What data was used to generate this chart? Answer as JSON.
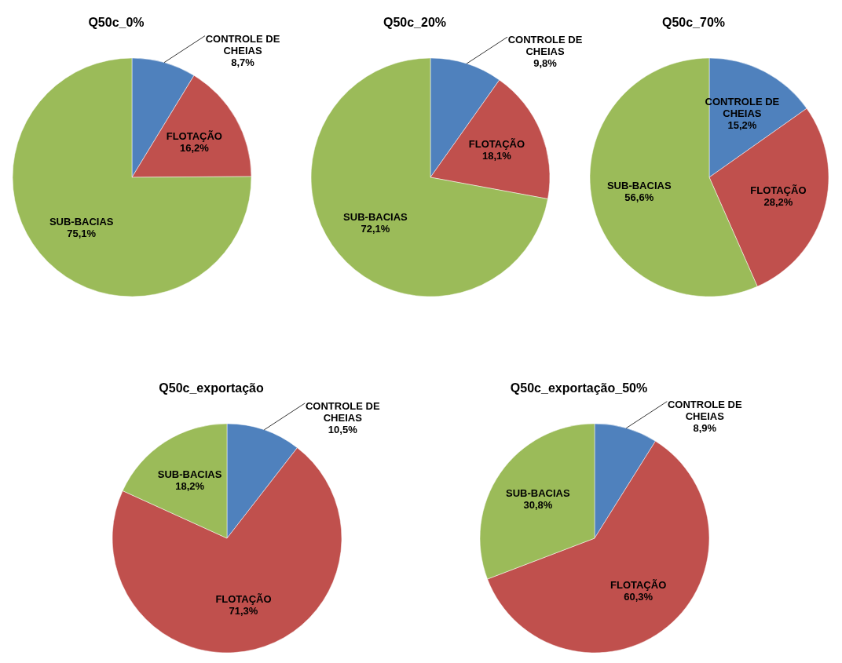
{
  "chart_data": [
    {
      "type": "pie",
      "title": "Q50c_0%",
      "categories": [
        "CONTROLE DE CHEIAS",
        "FLOTAÇÃO",
        "SUB-BACIAS"
      ],
      "values": [
        8.7,
        16.2,
        75.1
      ],
      "value_labels": [
        "8,7%",
        "16,2%",
        "75,1%"
      ],
      "colors": [
        "#4f81bd",
        "#c0504d",
        "#9bbb59"
      ]
    },
    {
      "type": "pie",
      "title": "Q50c_20%",
      "categories": [
        "CONTROLE DE CHEIAS",
        "FLOTAÇÃO",
        "SUB-BACIAS"
      ],
      "values": [
        9.8,
        18.1,
        72.1
      ],
      "value_labels": [
        "9,8%",
        "18,1%",
        "72,1%"
      ],
      "colors": [
        "#4f81bd",
        "#c0504d",
        "#9bbb59"
      ]
    },
    {
      "type": "pie",
      "title": "Q50c_70%",
      "categories": [
        "CONTROLE DE CHEIAS",
        "FLOTAÇÃO",
        "SUB-BACIAS"
      ],
      "values": [
        15.2,
        28.2,
        56.6
      ],
      "value_labels": [
        "15,2%",
        "28,2%",
        "56,6%"
      ],
      "colors": [
        "#4f81bd",
        "#c0504d",
        "#9bbb59"
      ]
    },
    {
      "type": "pie",
      "title": "Q50c_exportação",
      "categories": [
        "CONTROLE DE CHEIAS",
        "FLOTAÇÃO",
        "SUB-BACIAS"
      ],
      "values": [
        10.5,
        71.3,
        18.2
      ],
      "value_labels": [
        "10,5%",
        "71,3%",
        "18,2%"
      ],
      "colors": [
        "#4f81bd",
        "#c0504d",
        "#9bbb59"
      ]
    },
    {
      "type": "pie",
      "title": "Q50c_exportação_50%",
      "categories": [
        "CONTROLE DE CHEIAS",
        "FLOTAÇÃO",
        "SUB-BACIAS"
      ],
      "values": [
        8.9,
        60.3,
        30.8
      ],
      "value_labels": [
        "8,9%",
        "60,3%",
        "30,8%"
      ],
      "colors": [
        "#4f81bd",
        "#c0504d",
        "#9bbb59"
      ]
    }
  ]
}
